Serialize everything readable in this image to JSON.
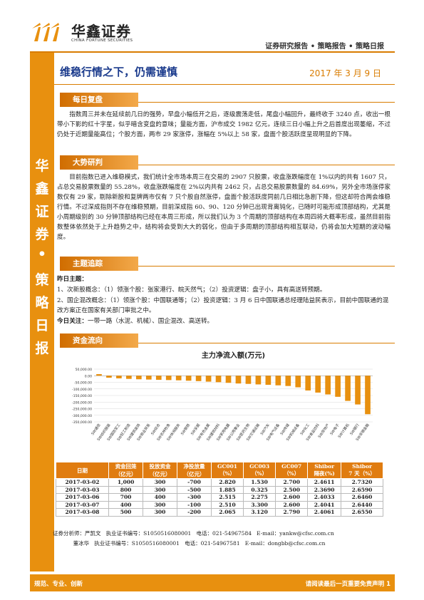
{
  "header": {
    "logo_cn": "华鑫证券",
    "logo_en": "CHINA FORTUNE SECURITIES",
    "breadcrumb": "证券研究报告 • 策略报告 • 策略日报"
  },
  "sidebar": {
    "chars": [
      "华",
      "鑫",
      "证",
      "券",
      "•",
      "策",
      "略",
      "日",
      "报"
    ]
  },
  "title": "维稳行情之下，仍需谨慎",
  "date": "2017 年 3 月 9 日",
  "sections": {
    "review": {
      "label": "每日复盘",
      "text": "指数周三并未在延续前几日的强势，早盘小幅低开之后，逐级震荡走低，尾盘小幅回升，最终收于 3240 点，收出一根带小下影的红十字星，似乎暗含变盘的意味；量能方面，沪市成交 1982 亿元，连续三日小幅上升之后首度出现萎缩，不过仍处于近期量能高位；个股方面，两市 29 家涨停，涨幅在 5%以上 58 家，盘面个股活跃度呈现明显的下降。"
    },
    "research": {
      "label": "大势研判",
      "text": "目前指数已进入维稳模式，我们统计全市场本周三在交易的 2907 只股票，收盘涨跌幅度在 1%以内的共有 1607 只，占总交易股票数量的 55.28%，收盘涨跌幅度在 2%以内共有 2462 只，占总交易股票数量的 84.69%，另外全市场涨停家数仅有 29 家，剔除新股和复牌两市仅有 7 只个股自然涨停，盘面个股活跃度同前几日相比急剧下降，但这却符合两会维稳行情。不过深成指则不存在维稳预期，目前深成指 60、90、120 分钟已出现背离钝化，已随时可能形成顶部结构，尤其是小周期级别的 30 分钟顶部结构已经在本周三形成，所以我们认为 3 个周期的顶部结构在本周四将大概率形成，虽然目前指数整体依然处于上升趋势之中，结构将会受到大大的弱化，但由于多周期的顶部结构相互联动，仍将会加大短期的波动幅度。"
    },
    "tracking": {
      "label": "主题追踪",
      "yesterday_label": "昨日主题：",
      "item1": "1、次新股概念：（1）领涨个股：张家港行、皖天然气；（2）投资逻辑：盘子小，具有高送转预期。",
      "item2": "2、国企混改概念：（1）领涨个股：中国联通等；（2）投资逻辑：3 月 6 日中国联通总经理陆益民表示，目前中国联通的混改方案正在国家有关部门审批之中。",
      "today_label": "今日关注：",
      "today_text": "一带一路（水泥、机械）、国企混改、高送转。"
    },
    "flow": {
      "label": "资金流向"
    }
  },
  "chart_data": {
    "type": "bar",
    "title": "主力净流入额(万元)",
    "ylim": [
      -350000,
      50000
    ],
    "yticks": [
      "50,000.00",
      "0.00",
      "-50,000.00",
      "-100,000.00",
      "-150,000.00",
      "-200,000.00",
      "-250,000.00",
      "-300,000.00",
      "-350,000.00"
    ],
    "categories": [
      "SW通信",
      "SW纺织服装",
      "SW国防军工",
      "SW轻工制造",
      "SW建筑装饰",
      "SW商业贸易",
      "SW综合",
      "SW农林牧渔",
      "SW休闲服务",
      "SW钢铁",
      "SW采掘",
      "SW有色金属",
      "SW建筑材料",
      "SW家用电器",
      "SW公用事业",
      "SW医药生物",
      "SW交通运输",
      "SW汽车",
      "SW电气设备",
      "SW传媒",
      "SW机械设备",
      "SW化工",
      "SW食品饮料",
      "SW房地产",
      "SW电子",
      "SW计算机",
      "SW银行",
      "SW非银金融"
    ],
    "values": [
      12000,
      -15000,
      -20000,
      -24000,
      -27000,
      -29000,
      -31000,
      -33000,
      -35000,
      -38000,
      -41000,
      -45000,
      -49000,
      -54000,
      -59000,
      -62000,
      -66000,
      -69000,
      -73000,
      -78000,
      -88000,
      -112000,
      -128000,
      -142000,
      -160000,
      -191000,
      -218000,
      -292000
    ],
    "grid": true,
    "legend": "none"
  },
  "table": {
    "headers": [
      "日期",
      "资金回笼\n（亿元）",
      "投放资金\n（亿元）",
      "净投放量\n（亿元）",
      "GC001\n（%）",
      "GC003\n（%）",
      "GC007\n（%）",
      "Shibor\n隔夜(%)",
      "Shibor\n7 天（%）"
    ],
    "rows": [
      [
        "2017-03-02",
        "1,000",
        "300",
        "-700",
        "2.820",
        "1.530",
        "2.700",
        "2.4611",
        "2.7320"
      ],
      [
        "2017-03-03",
        "800",
        "300",
        "-500",
        "1.885",
        "0.325",
        "2.500",
        "2.3690",
        "2.6590"
      ],
      [
        "2017-03-06",
        "700",
        "400",
        "-300",
        "2.515",
        "2.275",
        "2.600",
        "2.4033",
        "2.6460"
      ],
      [
        "2017-03-07",
        "400",
        "300",
        "-100",
        "2.510",
        "3.300",
        "2.600",
        "2.4041",
        "2.6440"
      ],
      [
        "2017-03-08",
        "500",
        "300",
        "-200",
        "2.065",
        "3.120",
        "2.790",
        "2.4061",
        "2.6550"
      ]
    ]
  },
  "contacts": [
    "证券分析师：严凯文   执业证书编号：S1050516080001   电话：021-54967584   E-mail：yankw@cfsc.com.cn",
    "            董冰华   执业证书编号：S1050516080001   电话：021-54967581   E-mail：dongbb@cfsc.com.cn"
  ],
  "footer": {
    "left": "规范、专业、创新",
    "right": "请阅读最后一页重要免责声明 1"
  },
  "colors": {
    "accent": "#e8900f",
    "title": "#1a3a8c"
  }
}
